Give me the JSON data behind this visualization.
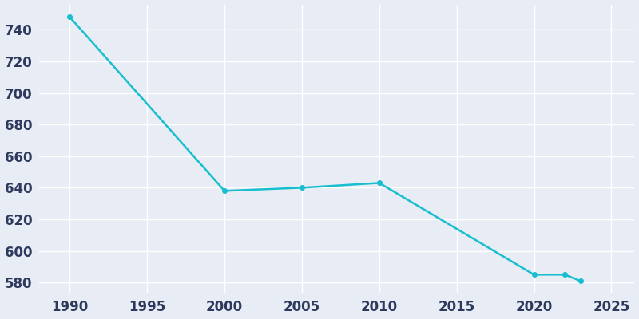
{
  "years": [
    1990,
    2000,
    2005,
    2010,
    2020,
    2022,
    2023
  ],
  "population": [
    748,
    638,
    640,
    643,
    585,
    585,
    581
  ],
  "line_color": "#17BECF",
  "marker_color": "#17BECF",
  "bg_color": "#E8EDF5",
  "plot_bg_color": "#E8EDF5",
  "grid_color": "#FFFFFF",
  "tick_color": "#2D3A5E",
  "xlim": [
    1988,
    2026.5
  ],
  "ylim": [
    573,
    756
  ],
  "xticks": [
    1990,
    1995,
    2000,
    2005,
    2010,
    2015,
    2020,
    2025
  ],
  "yticks": [
    580,
    600,
    620,
    640,
    660,
    680,
    700,
    720,
    740
  ]
}
